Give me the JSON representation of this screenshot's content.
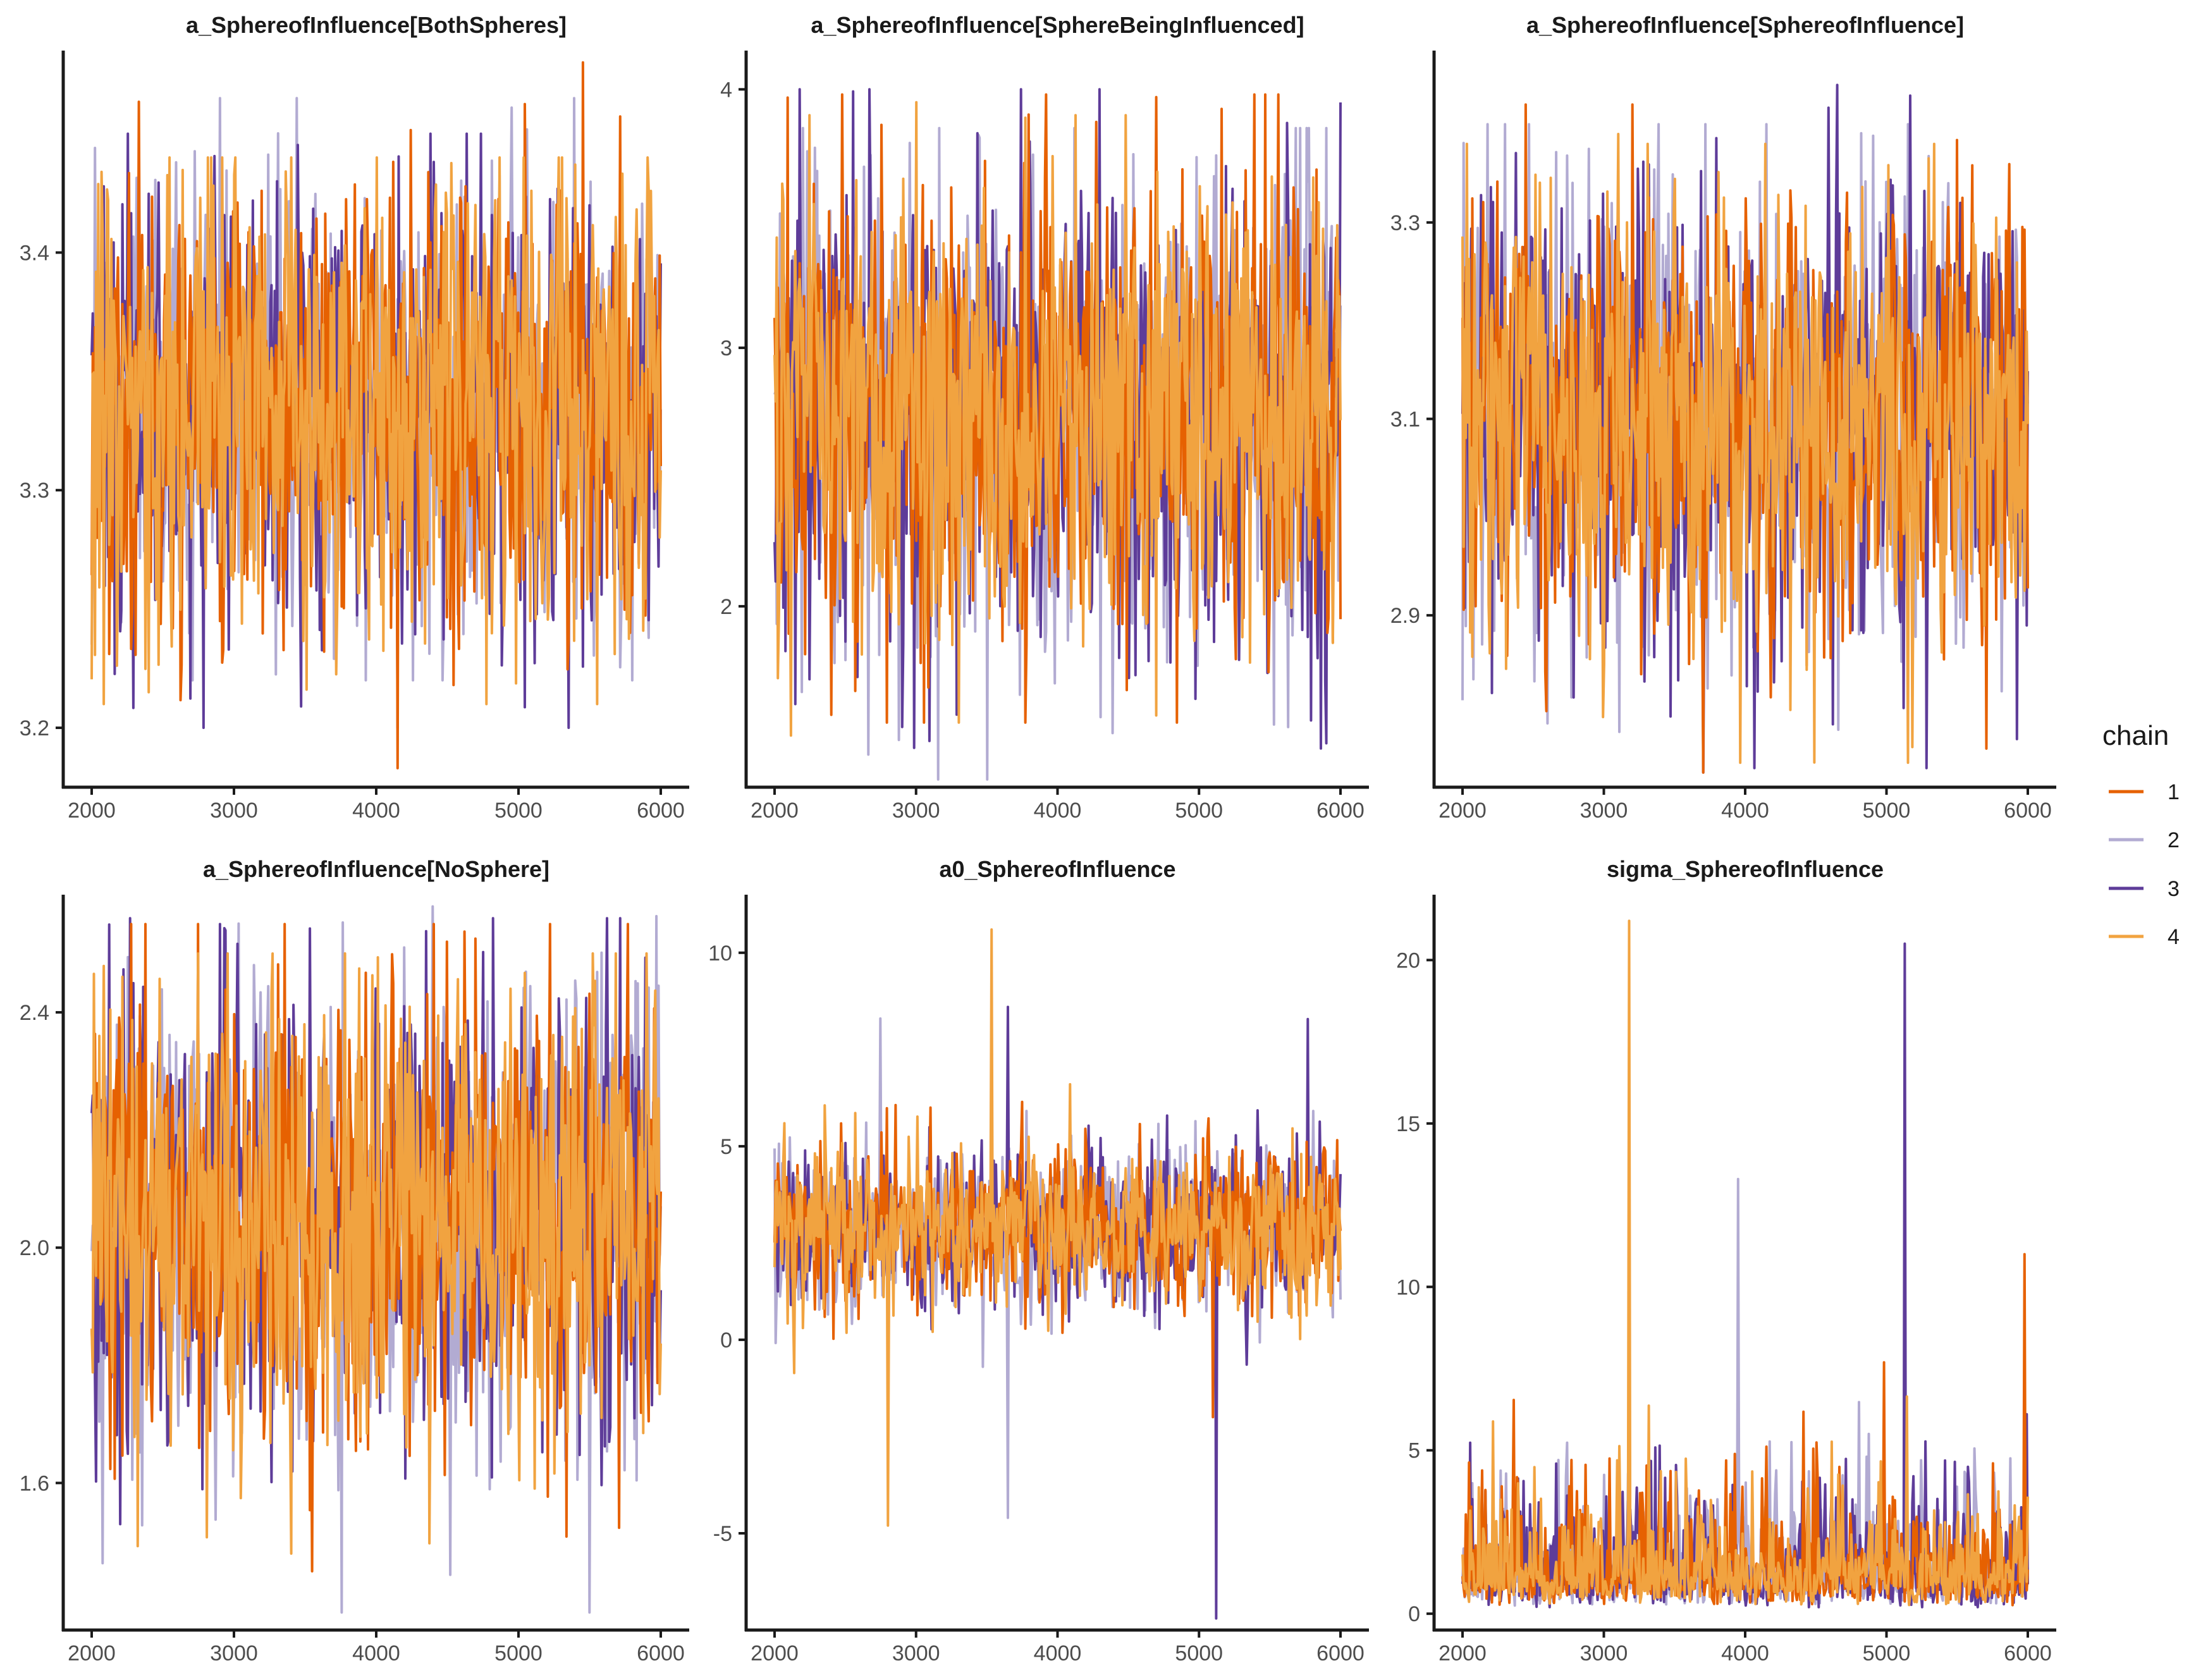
{
  "chart_data": [
    {
      "type": "line",
      "title": "a_SphereofInfluence[BothSpheres]",
      "xlabel": "",
      "ylabel": "",
      "x_range": [
        2000,
        6000
      ],
      "ylim": [
        3.175,
        3.485
      ],
      "x_ticks": [
        2000,
        3000,
        4000,
        5000,
        6000
      ],
      "y_ticks": [
        3.2,
        3.3,
        3.4
      ],
      "y_tick_labels": [
        "3.2",
        "3.3",
        "3.4"
      ],
      "series": [
        {
          "name": "1",
          "center": 3.335,
          "spread": 0.032,
          "min": 3.183,
          "max": 3.48,
          "spike_high": [
            5450,
            3.48
          ],
          "spike_low": [
            4150,
            3.183
          ]
        },
        {
          "name": "2",
          "center": 3.335,
          "spread": 0.032,
          "min": 3.22,
          "max": 3.465,
          "spike_high": [
            2900,
            3.465
          ],
          "spike_low": [
            2000,
            3.235
          ]
        },
        {
          "name": "3",
          "center": 3.335,
          "spread": 0.032,
          "min": 3.2,
          "max": 3.45,
          "spike_high": [
            3300,
            3.43
          ],
          "spike_low": [
            4150,
            3.2
          ]
        },
        {
          "name": "4",
          "center": 3.335,
          "spread": 0.032,
          "min": 3.21,
          "max": 3.44,
          "spike_high": [
            4700,
            3.42
          ],
          "spike_low": [
            2400,
            3.215
          ]
        }
      ]
    },
    {
      "type": "line",
      "title": "a_SphereofInfluence[SphereBeingInfluenced]",
      "xlabel": "",
      "ylabel": "",
      "x_range": [
        2000,
        6000
      ],
      "ylim": [
        1.3,
        4.15
      ],
      "x_ticks": [
        2000,
        3000,
        4000,
        5000,
        6000
      ],
      "y_ticks": [
        2,
        3,
        4
      ],
      "y_tick_labels": [
        "2",
        "3",
        "4"
      ],
      "series": [
        {
          "name": "1",
          "center": 2.75,
          "spread": 0.3,
          "min": 1.55,
          "max": 3.98,
          "spike_high": [
            4700,
            3.97
          ],
          "spike_low": [
            2400,
            1.58
          ]
        },
        {
          "name": "2",
          "center": 2.75,
          "spread": 0.3,
          "min": 1.33,
          "max": 3.85,
          "spike_high": [
            2200,
            3.85
          ],
          "spike_low": [
            3500,
            1.33
          ]
        },
        {
          "name": "3",
          "center": 2.75,
          "spread": 0.3,
          "min": 1.45,
          "max": 4.0,
          "spike_high": [
            4300,
            4.0
          ],
          "spike_low": [
            5900,
            1.47
          ]
        },
        {
          "name": "4",
          "center": 2.75,
          "spread": 0.3,
          "min": 1.5,
          "max": 3.9,
          "spike_high": [
            3000,
            3.95
          ],
          "spike_low": [
            3300,
            1.55
          ]
        }
      ]
    },
    {
      "type": "line",
      "title": "a_SphereofInfluence[SphereofInfluence]",
      "xlabel": "",
      "ylabel": "",
      "x_range": [
        2000,
        6000
      ],
      "ylim": [
        2.725,
        3.475
      ],
      "x_ticks": [
        2000,
        3000,
        4000,
        5000,
        6000
      ],
      "y_ticks": [
        2.9,
        3.1,
        3.3
      ],
      "y_tick_labels": [
        "2.9",
        "3.1",
        "3.3"
      ],
      "series": [
        {
          "name": "1",
          "center": 3.1,
          "spread": 0.075,
          "min": 2.74,
          "max": 3.42,
          "spike_high": [
            3200,
            3.42
          ],
          "spike_low": [
            3700,
            2.74
          ]
        },
        {
          "name": "2",
          "center": 3.1,
          "spread": 0.075,
          "min": 2.78,
          "max": 3.4,
          "spike_high": [
            2300,
            3.4
          ],
          "spike_low": [
            2600,
            2.79
          ]
        },
        {
          "name": "3",
          "center": 3.1,
          "spread": 0.075,
          "min": 2.74,
          "max": 3.44,
          "spike_high": [
            4650,
            3.44
          ],
          "spike_low": [
            3700,
            2.74
          ]
        },
        {
          "name": "4",
          "center": 3.1,
          "spread": 0.075,
          "min": 2.75,
          "max": 3.38,
          "spike_high": [
            3100,
            3.39
          ],
          "spike_low": [
            5150,
            2.75
          ]
        }
      ]
    },
    {
      "type": "line",
      "title": "a_SphereofInfluence[NoSphere]",
      "xlabel": "",
      "ylabel": "",
      "x_range": [
        2000,
        6000
      ],
      "ylim": [
        1.35,
        2.6
      ],
      "x_ticks": [
        2000,
        3000,
        4000,
        5000,
        6000
      ],
      "y_ticks": [
        1.6,
        2.0,
        2.4
      ],
      "y_tick_labels": [
        "1.6",
        "2.0",
        "2.4"
      ],
      "series": [
        {
          "name": "1",
          "center": 2.06,
          "spread": 0.13,
          "min": 1.45,
          "max": 2.55,
          "spike_high": [
            4500,
            2.52
          ],
          "spike_low": [
            3550,
            1.45
          ]
        },
        {
          "name": "2",
          "center": 2.06,
          "spread": 0.13,
          "min": 1.38,
          "max": 2.58,
          "spike_high": [
            4400,
            2.58
          ],
          "spike_low": [
            5500,
            1.38
          ]
        },
        {
          "name": "3",
          "center": 2.06,
          "spread": 0.13,
          "min": 1.5,
          "max": 2.56,
          "spike_high": [
            2900,
            2.55
          ],
          "spike_low": [
            2200,
            1.53
          ]
        },
        {
          "name": "4",
          "center": 2.06,
          "spread": 0.13,
          "min": 1.48,
          "max": 2.5,
          "spike_high": [
            5900,
            2.5
          ],
          "spike_low": [
            3400,
            1.48
          ]
        }
      ]
    },
    {
      "type": "line",
      "title": "a0_SphereofInfluence",
      "xlabel": "",
      "ylabel": "",
      "x_range": [
        2000,
        6000
      ],
      "ylim": [
        -7.5,
        11.5
      ],
      "x_ticks": [
        2000,
        3000,
        4000,
        5000,
        6000
      ],
      "y_ticks": [
        -5,
        0,
        5,
        10
      ],
      "y_tick_labels": [
        "-5",
        "0",
        "5",
        "10"
      ],
      "series": [
        {
          "name": "1",
          "center": 2.9,
          "spread": 0.7,
          "min": -2.5,
          "max": 6.5,
          "spike_high": [
            3100,
            6.0
          ],
          "spike_low": [
            5100,
            -2.0
          ]
        },
        {
          "name": "2",
          "center": 2.9,
          "spread": 0.7,
          "min": -4.8,
          "max": 8.3,
          "spike_high": [
            2750,
            8.3
          ],
          "spike_low": [
            3650,
            -4.6
          ]
        },
        {
          "name": "3",
          "center": 2.9,
          "spread": 0.7,
          "min": -7.2,
          "max": 8.6,
          "spike_high": [
            3650,
            8.6
          ],
          "spike_low": [
            5120,
            -7.2
          ]
        },
        {
          "name": "4",
          "center": 2.9,
          "spread": 0.7,
          "min": -4.8,
          "max": 10.6,
          "spike_high": [
            3530,
            10.6
          ],
          "spike_low": [
            2800,
            -4.8
          ]
        }
      ]
    },
    {
      "type": "line",
      "title": "sigma_SphereofInfluence",
      "xlabel": "",
      "ylabel": "",
      "x_range": [
        2000,
        6000
      ],
      "ylim": [
        -0.5,
        22.0
      ],
      "x_ticks": [
        2000,
        3000,
        4000,
        5000,
        6000
      ],
      "y_ticks": [
        0,
        5,
        10,
        15,
        20
      ],
      "y_tick_labels": [
        "0",
        "5",
        "10",
        "15",
        "20"
      ],
      "series": [
        {
          "name": "1",
          "center": 1.3,
          "spread": 0.9,
          "min": 0.25,
          "max": 11.0,
          "spike_high": [
            5980,
            11.0
          ],
          "spike_low": [
            3000,
            0.3
          ]
        },
        {
          "name": "2",
          "center": 1.3,
          "spread": 0.9,
          "min": 0.25,
          "max": 13.3,
          "spike_high": [
            3950,
            13.3
          ],
          "spike_low": [
            2500,
            0.3
          ]
        },
        {
          "name": "3",
          "center": 1.3,
          "spread": 0.9,
          "min": 0.2,
          "max": 20.5,
          "spike_high": [
            5130,
            20.5
          ],
          "spike_low": [
            4000,
            0.25
          ]
        },
        {
          "name": "4",
          "center": 1.3,
          "spread": 0.9,
          "min": 0.25,
          "max": 21.2,
          "spike_high": [
            3180,
            21.2
          ],
          "spike_low": [
            4800,
            0.3
          ]
        }
      ]
    }
  ],
  "legend": {
    "title": "chain",
    "position": "right",
    "items": [
      {
        "label": "1",
        "color": "#e66101"
      },
      {
        "label": "2",
        "color": "#b2abd2"
      },
      {
        "label": "3",
        "color": "#5e3c99"
      },
      {
        "label": "4",
        "color": "#f1a340"
      }
    ]
  }
}
